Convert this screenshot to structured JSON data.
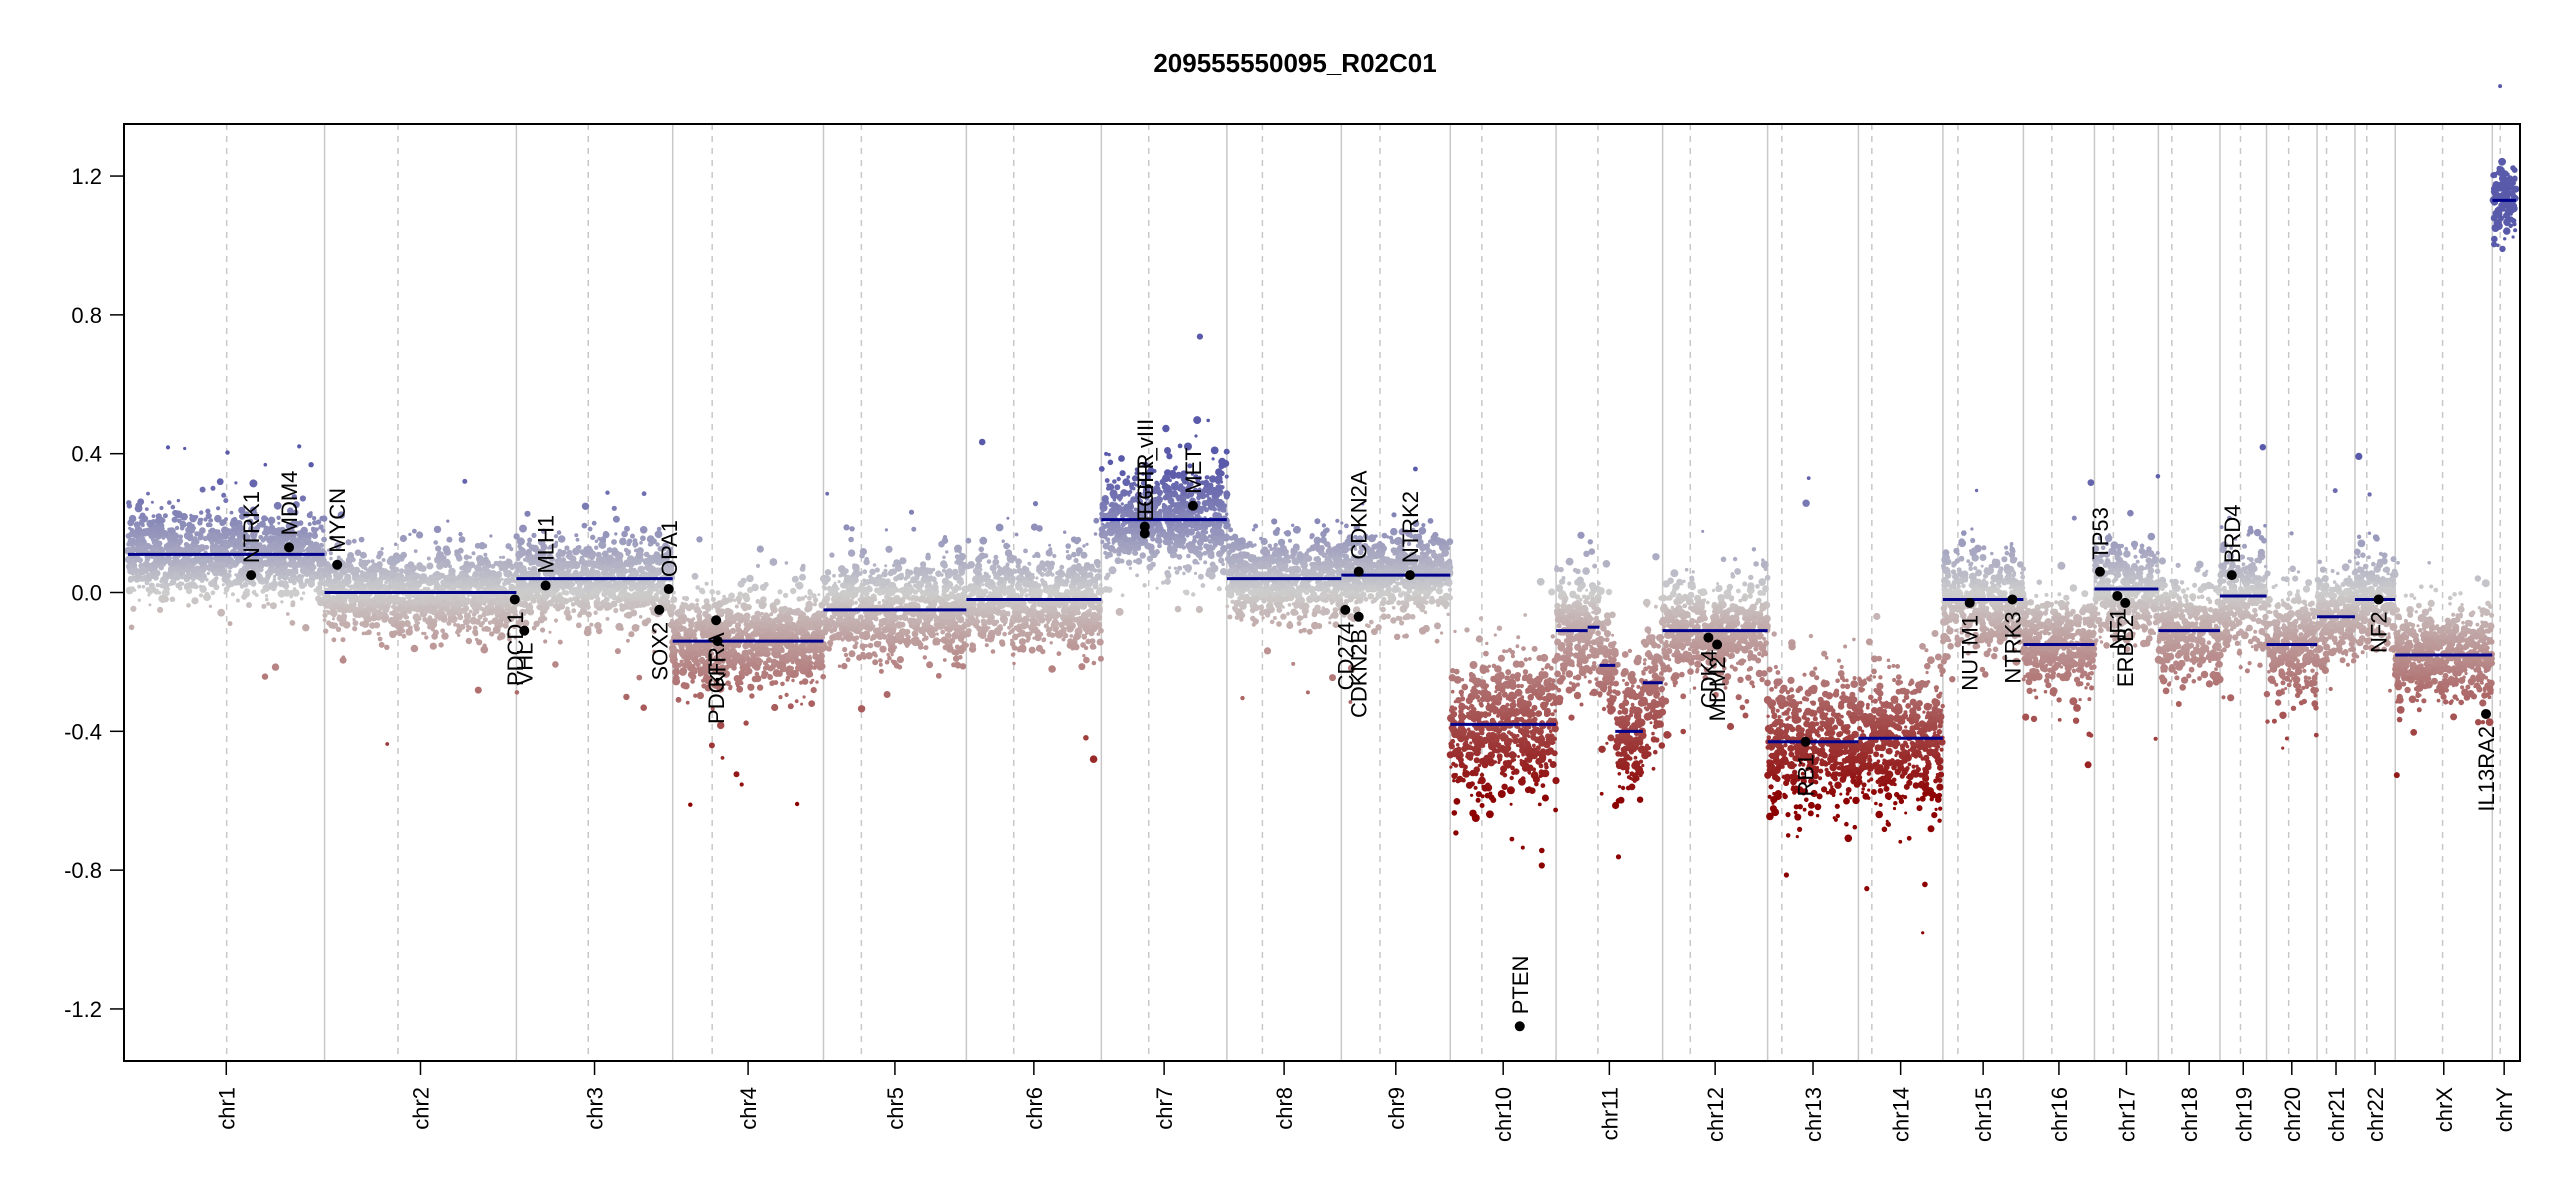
{
  "chart_data": {
    "type": "scatter",
    "title": "209555550095_R02C01",
    "xlabel": "",
    "ylabel": "",
    "ylim": [
      -1.35,
      1.35
    ],
    "y_ticks": [
      1.2,
      0.8,
      0.4,
      0.0,
      -0.4,
      -0.8,
      -1.2
    ],
    "y_tick_labels": [
      "1.2",
      "0.8",
      "0.4",
      "0.0",
      "-0.4",
      "-0.8",
      "-1.2"
    ],
    "genome_length_mb": 3025,
    "chromosomes": [
      {
        "name": "chr1",
        "start": 0,
        "end": 249,
        "centromere": 125,
        "seg": [
          [
            0,
            249,
            0.11
          ]
        ],
        "spread": 0.06
      },
      {
        "name": "chr2",
        "start": 249,
        "end": 492,
        "centromere": 93,
        "seg": [
          [
            0,
            243,
            0.0
          ]
        ],
        "spread": 0.06
      },
      {
        "name": "chr3",
        "start": 492,
        "end": 690,
        "centromere": 91,
        "seg": [
          [
            0,
            198,
            0.04
          ]
        ],
        "spread": 0.06
      },
      {
        "name": "chr4",
        "start": 690,
        "end": 881,
        "centromere": 50,
        "seg": [
          [
            0,
            191,
            -0.14
          ]
        ],
        "spread": 0.07
      },
      {
        "name": "chr5",
        "start": 881,
        "end": 1062,
        "centromere": 48,
        "seg": [
          [
            0,
            181,
            -0.05
          ]
        ],
        "spread": 0.07
      },
      {
        "name": "chr6",
        "start": 1062,
        "end": 1233,
        "centromere": 60,
        "seg": [
          [
            0,
            171,
            -0.02
          ]
        ],
        "spread": 0.07
      },
      {
        "name": "chr7",
        "start": 1233,
        "end": 1392,
        "centromere": 60,
        "seg": [
          [
            0,
            159,
            0.21
          ]
        ],
        "spread": 0.08
      },
      {
        "name": "chr8",
        "start": 1392,
        "end": 1537,
        "centromere": 45,
        "seg": [
          [
            0,
            145,
            0.04
          ]
        ],
        "spread": 0.06
      },
      {
        "name": "chr9",
        "start": 1537,
        "end": 1675,
        "centromere": 49,
        "seg": [
          [
            0,
            138,
            0.05
          ]
        ],
        "spread": 0.06
      },
      {
        "name": "chr10",
        "start": 1675,
        "end": 1809,
        "centromere": 40,
        "seg": [
          [
            0,
            134,
            -0.38
          ]
        ],
        "spread": 0.1
      },
      {
        "name": "chr11",
        "start": 1809,
        "end": 1944,
        "centromere": 53,
        "seg": [
          [
            0,
            40,
            -0.11
          ],
          [
            40,
            55,
            -0.1
          ],
          [
            55,
            75,
            -0.21
          ],
          [
            75,
            110,
            -0.4
          ],
          [
            110,
            135,
            -0.26
          ]
        ],
        "spread": 0.09
      },
      {
        "name": "chr12",
        "start": 1944,
        "end": 2077,
        "centromere": 35,
        "seg": [
          [
            0,
            133,
            -0.11
          ]
        ],
        "spread": 0.07
      },
      {
        "name": "chr13",
        "start": 2077,
        "end": 2192,
        "centromere": 18,
        "seg": [
          [
            0,
            115,
            -0.43
          ]
        ],
        "spread": 0.1
      },
      {
        "name": "chr14",
        "start": 2192,
        "end": 2299,
        "centromere": 17,
        "seg": [
          [
            0,
            107,
            -0.42
          ]
        ],
        "spread": 0.1
      },
      {
        "name": "chr15",
        "start": 2299,
        "end": 2401,
        "centromere": 19,
        "seg": [
          [
            0,
            102,
            -0.02
          ]
        ],
        "spread": 0.07
      },
      {
        "name": "chr16",
        "start": 2401,
        "end": 2491,
        "centromere": 36,
        "seg": [
          [
            0,
            90,
            -0.15
          ]
        ],
        "spread": 0.07
      },
      {
        "name": "chr17",
        "start": 2491,
        "end": 2572,
        "centromere": 24,
        "seg": [
          [
            0,
            81,
            0.01
          ]
        ],
        "spread": 0.07
      },
      {
        "name": "chr18",
        "start": 2572,
        "end": 2650,
        "centromere": 17,
        "seg": [
          [
            0,
            78,
            -0.11
          ]
        ],
        "spread": 0.07
      },
      {
        "name": "chr19",
        "start": 2650,
        "end": 2709,
        "centromere": 26,
        "seg": [
          [
            0,
            59,
            -0.01
          ]
        ],
        "spread": 0.07
      },
      {
        "name": "chr20",
        "start": 2709,
        "end": 2773,
        "centromere": 28,
        "seg": [
          [
            0,
            64,
            -0.15
          ]
        ],
        "spread": 0.08
      },
      {
        "name": "chr21",
        "start": 2773,
        "end": 2821,
        "centromere": 12,
        "seg": [
          [
            0,
            48,
            -0.07
          ]
        ],
        "spread": 0.07
      },
      {
        "name": "chr22",
        "start": 2821,
        "end": 2872,
        "centromere": 15,
        "seg": [
          [
            0,
            51,
            -0.02
          ]
        ],
        "spread": 0.07
      },
      {
        "name": "chrX",
        "start": 2872,
        "end": 2995,
        "centromere": 60,
        "seg": [
          [
            0,
            123,
            -0.18
          ]
        ],
        "spread": 0.07
      },
      {
        "name": "chrY",
        "start": 2995,
        "end": 3025,
        "centromere": 10,
        "seg": [
          [
            0,
            30,
            1.13
          ]
        ],
        "spread": 0.05
      }
    ],
    "genes": [
      {
        "name": "NTRK1",
        "pos": 156,
        "y": 0.05,
        "above": true
      },
      {
        "name": "MDM4",
        "pos": 204,
        "y": 0.13,
        "above": true
      },
      {
        "name": "MYCN",
        "pos": 265,
        "y": 0.08,
        "above": true
      },
      {
        "name": "PDCD1",
        "pos": 490,
        "y": -0.02,
        "above": false
      },
      {
        "name": "VHL",
        "pos": 502,
        "y": -0.11,
        "above": false
      },
      {
        "name": "MLH1",
        "pos": 529,
        "y": 0.02,
        "above": true
      },
      {
        "name": "SOX2",
        "pos": 673,
        "y": -0.05,
        "above": false
      },
      {
        "name": "OPA1",
        "pos": 685,
        "y": 0.01,
        "above": true
      },
      {
        "name": "PDGFRA",
        "pos": 745,
        "y": -0.08,
        "above": false
      },
      {
        "name": "KIT",
        "pos": 747,
        "y": -0.14,
        "above": false
      },
      {
        "name": "EGFR",
        "pos": 1288,
        "y": 0.19,
        "above": true
      },
      {
        "name": "EGFR_vIII",
        "pos": 1288,
        "y": 0.17,
        "above": true
      },
      {
        "name": "MET",
        "pos": 1349,
        "y": 0.25,
        "above": true
      },
      {
        "name": "CD274",
        "pos": 1542,
        "y": -0.05,
        "above": false
      },
      {
        "name": "CDKN2B",
        "pos": 1559,
        "y": -0.07,
        "above": false
      },
      {
        "name": "CDKN2A",
        "pos": 1559,
        "y": 0.06,
        "above": true
      },
      {
        "name": "NTRK2",
        "pos": 1624,
        "y": 0.05,
        "above": true
      },
      {
        "name": "PTEN",
        "pos": 1763,
        "y": -1.25,
        "above": true
      },
      {
        "name": "CDK4",
        "pos": 2002,
        "y": -0.13,
        "above": false
      },
      {
        "name": "MDM2",
        "pos": 2013,
        "y": -0.15,
        "above": false
      },
      {
        "name": "RB1",
        "pos": 2125,
        "y": -0.43,
        "above": false
      },
      {
        "name": "NUTM1",
        "pos": 2333,
        "y": -0.03,
        "above": false
      },
      {
        "name": "NTRK3",
        "pos": 2387,
        "y": -0.02,
        "above": false
      },
      {
        "name": "TP53",
        "pos": 2498,
        "y": 0.06,
        "above": true
      },
      {
        "name": "NF1",
        "pos": 2520,
        "y": -0.01,
        "above": false
      },
      {
        "name": "ERBB2",
        "pos": 2530,
        "y": -0.03,
        "above": false
      },
      {
        "name": "BRD4",
        "pos": 2665,
        "y": 0.05,
        "above": true
      },
      {
        "name": "NF2",
        "pos": 2851,
        "y": -0.02,
        "above": false
      },
      {
        "name": "IL13RA2",
        "pos": 2987,
        "y": -0.35,
        "above": false
      }
    ]
  }
}
